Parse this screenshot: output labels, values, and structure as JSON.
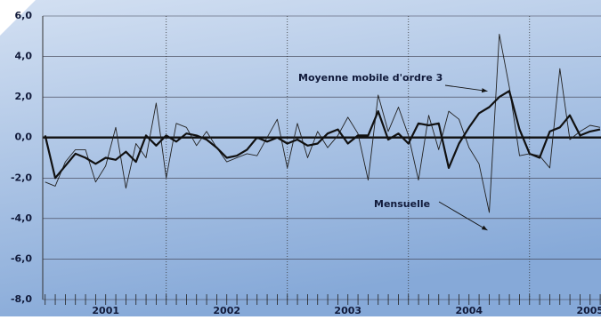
{
  "chart_data": {
    "type": "line",
    "x": [
      2001.0,
      2001.083,
      2001.167,
      2001.25,
      2001.333,
      2001.417,
      2001.5,
      2001.583,
      2001.667,
      2001.75,
      2001.833,
      2001.917,
      2002.0,
      2002.083,
      2002.167,
      2002.25,
      2002.333,
      2002.417,
      2002.5,
      2002.583,
      2002.667,
      2002.75,
      2002.833,
      2002.917,
      2003.0,
      2003.083,
      2003.167,
      2003.25,
      2003.333,
      2003.417,
      2003.5,
      2003.583,
      2003.667,
      2003.75,
      2003.833,
      2003.917,
      2004.0,
      2004.083,
      2004.167,
      2004.25,
      2004.333,
      2004.417,
      2004.5,
      2004.583,
      2004.667,
      2004.75,
      2004.833,
      2004.917,
      2005.0,
      2005.083,
      2005.167,
      2005.25,
      2005.333,
      2005.417,
      2005.5,
      2005.583
    ],
    "series": [
      {
        "name": "Mensuelle",
        "color": "#222222",
        "width": 0.9,
        "values": [
          -2.2,
          -2.4,
          -1.2,
          -0.6,
          -0.6,
          -2.2,
          -1.4,
          0.5,
          -2.5,
          -0.3,
          -1.0,
          1.7,
          -2.0,
          0.7,
          0.5,
          -0.4,
          0.3,
          -0.5,
          -1.2,
          -1.0,
          -0.8,
          -0.9,
          0.0,
          0.9,
          -1.5,
          0.7,
          -1.0,
          0.3,
          -0.5,
          0.1,
          1.0,
          0.2,
          -2.1,
          2.1,
          0.3,
          1.5,
          0.1,
          -2.1,
          1.1,
          -0.6,
          1.3,
          0.9,
          -0.5,
          -1.3,
          -3.7,
          5.1,
          2.5,
          -0.9,
          -0.8,
          -0.9,
          -1.5,
          3.4,
          -0.1,
          0.3,
          0.6,
          0.5
        ]
      },
      {
        "name": "Moyenne mobile d'ordre 3",
        "color": "#111111",
        "width": 2.2,
        "values": [
          0.1,
          -2.0,
          -1.4,
          -0.8,
          -1.0,
          -1.3,
          -1.0,
          -1.1,
          -0.7,
          -1.2,
          0.1,
          -0.4,
          0.1,
          -0.2,
          0.2,
          0.1,
          -0.1,
          -0.5,
          -1.0,
          -0.9,
          -0.6,
          0.0,
          -0.2,
          0.0,
          -0.3,
          -0.1,
          -0.4,
          -0.3,
          0.2,
          0.4,
          -0.3,
          0.1,
          0.1,
          1.3,
          -0.1,
          0.2,
          -0.3,
          0.7,
          0.6,
          0.7,
          -1.5,
          -0.3,
          0.5,
          1.2,
          1.5,
          2.0,
          2.3,
          0.4,
          -0.8,
          -1.0,
          0.3,
          0.5,
          1.1,
          0.1,
          0.3,
          0.4
        ]
      }
    ],
    "xlim": [
      2000.98,
      2005.59
    ],
    "xticks": [
      {
        "value": 2001.5,
        "label": "2001"
      },
      {
        "value": 2002.5,
        "label": "2002"
      },
      {
        "value": 2003.5,
        "label": "2003"
      },
      {
        "value": 2004.5,
        "label": "2004"
      },
      {
        "value": 2005.5,
        "label": "2005"
      }
    ],
    "xdividers": [
      2002,
      2003,
      2004,
      2005
    ],
    "ylim": [
      -8,
      6
    ],
    "yticks": [
      {
        "value": -8,
        "label": "-8,0"
      },
      {
        "value": -6,
        "label": "-6,0"
      },
      {
        "value": -4,
        "label": "-4,0"
      },
      {
        "value": -2,
        "label": "-2,0"
      },
      {
        "value": 0,
        "label": "0,0"
      },
      {
        "value": 2,
        "label": "2,0"
      },
      {
        "value": 4,
        "label": "4,0"
      },
      {
        "value": 6,
        "label": "6,0"
      }
    ],
    "grid": true,
    "annotations": [
      {
        "text": "Moyenne mobile d'ordre 3",
        "series": 1,
        "index": 44
      },
      {
        "text": "Mensuelle",
        "series": 0,
        "index": 44
      }
    ]
  }
}
